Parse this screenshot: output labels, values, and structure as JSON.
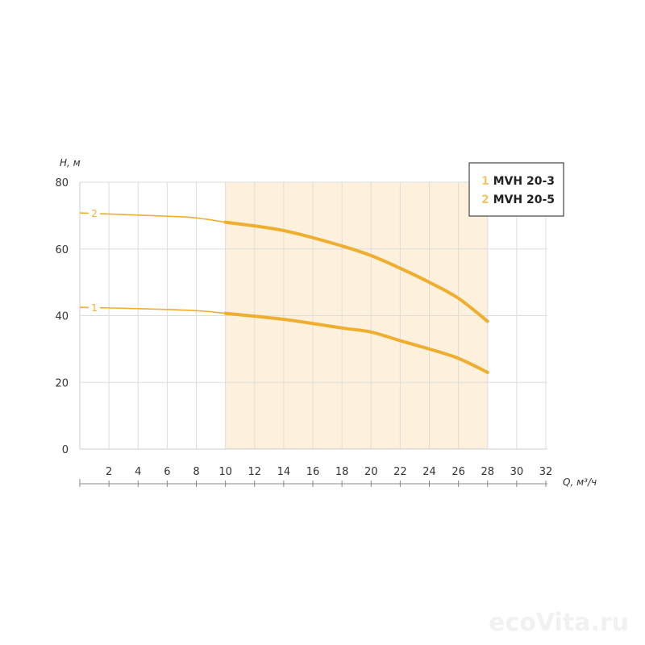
{
  "chart_data": {
    "type": "line",
    "xlabel": "Q, м³/ч",
    "ylabel": "H, м",
    "xlim": [
      0,
      32
    ],
    "ylim": [
      0,
      80
    ],
    "x_ticks": [
      2,
      4,
      6,
      8,
      10,
      12,
      14,
      16,
      18,
      20,
      22,
      24,
      26,
      28,
      30,
      32
    ],
    "y_ticks": [
      0,
      20,
      40,
      60,
      80
    ],
    "grid": true,
    "legend_placement": "top-right",
    "working_range": [
      10,
      28
    ],
    "colors": {
      "line": "#f0ae2e",
      "legend_number": "#f2c46c",
      "working_range_fill": "#fdf1dd",
      "grid": "#dddddd"
    },
    "series": [
      {
        "name": "MVH 20-3",
        "label": "1",
        "legend_number": "1",
        "x": [
          0,
          4,
          8,
          10,
          14,
          18,
          20,
          22,
          24,
          26,
          28
        ],
        "y": [
          42.5,
          42.1,
          41.5,
          40.7,
          38.9,
          36.3,
          35.1,
          32.5,
          30,
          27.2,
          23
        ]
      },
      {
        "name": "MVH 20-5",
        "label": "2",
        "legend_number": "2",
        "x": [
          0,
          6,
          8,
          10,
          14,
          18,
          20,
          22,
          24,
          26,
          28
        ],
        "y": [
          70.8,
          69.8,
          69.3,
          68,
          65.5,
          60.9,
          58,
          54.2,
          50,
          45.2,
          38.3
        ]
      }
    ]
  },
  "watermark": "ecoVita.ru"
}
